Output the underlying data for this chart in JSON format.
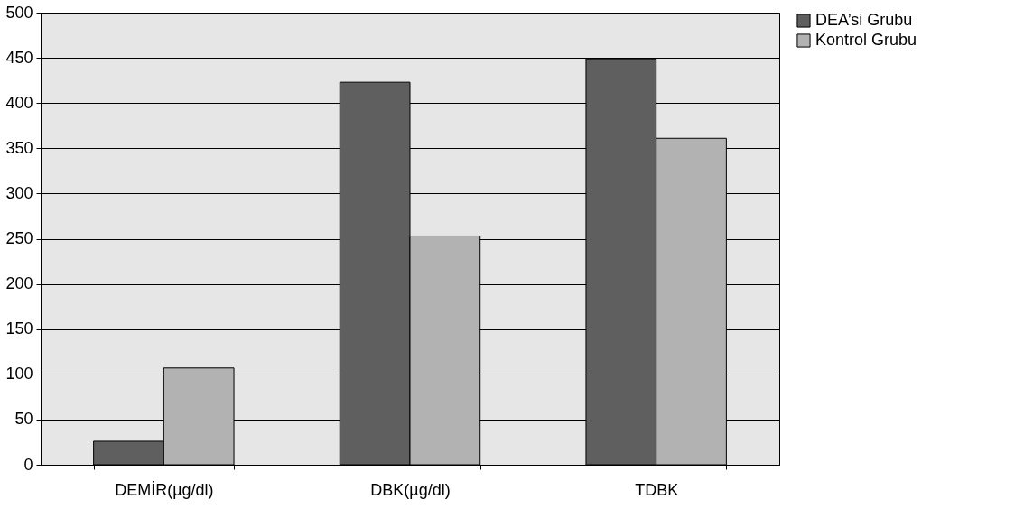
{
  "chart_data": {
    "type": "bar",
    "categories": [
      "DEMİR(µg/dl)",
      "DBK(µg/dl)",
      "TDBK"
    ],
    "series": [
      {
        "name": "DEA’si Grubu",
        "color": "#5f5f5f",
        "values": [
          26,
          423,
          449
        ]
      },
      {
        "name": "Kontrol Grubu",
        "color": "#b2b2b2",
        "values": [
          107,
          253,
          361
        ]
      }
    ],
    "ylim": [
      0,
      500
    ],
    "yticks": [
      0,
      50,
      100,
      150,
      200,
      250,
      300,
      350,
      400,
      450,
      500
    ],
    "grid": "y",
    "legend": "right"
  }
}
